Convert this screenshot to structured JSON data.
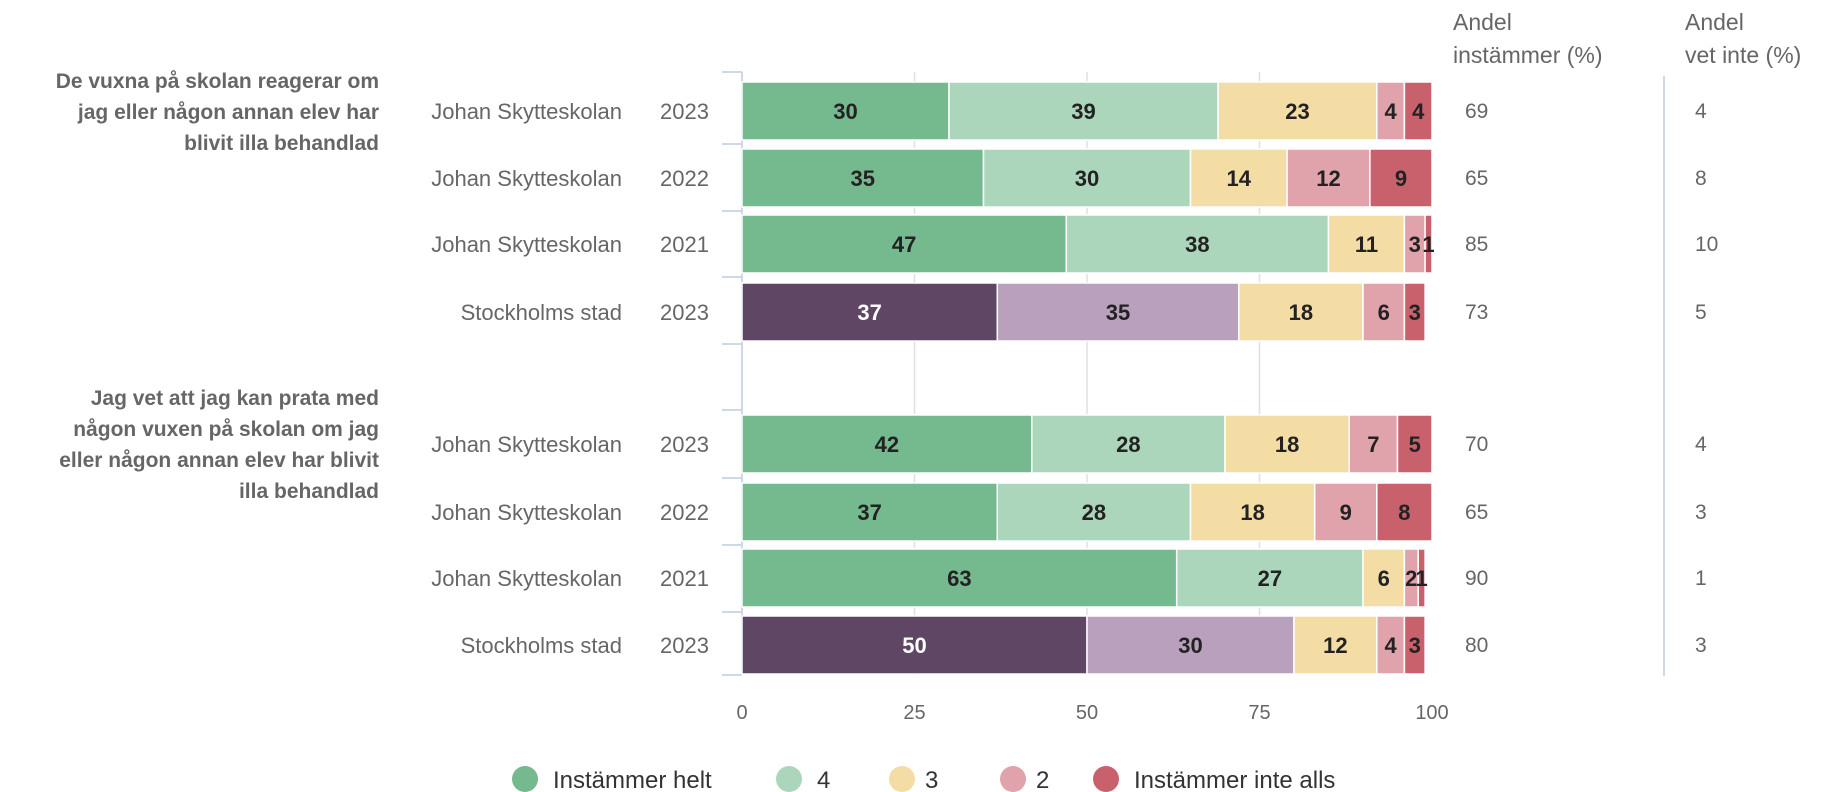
{
  "chart_data": {
    "type": "bar",
    "orientation": "horizontal-stacked",
    "xlim": [
      0,
      100
    ],
    "xticks": [
      "0",
      "25",
      "50",
      "75",
      "100"
    ],
    "legend_position": "bottom",
    "legend": [
      {
        "name": "Instämmer helt",
        "color": "#75b98e"
      },
      {
        "name": "4",
        "color": "#acd6bc"
      },
      {
        "name": "3",
        "color": "#f4dca5"
      },
      {
        "name": "2",
        "color": "#e0a2ab"
      },
      {
        "name": "Instämmer inte alls",
        "color": "#c9616d"
      }
    ],
    "stockholm_colors": [
      "#5e4664",
      "#b9a1bd",
      "#f4dca5",
      "#e0a2ab",
      "#c9616d"
    ],
    "col_headers": {
      "instammer": [
        "Andel",
        "instämmer (%)"
      ],
      "vet_inte": [
        "Andel",
        "vet inte (%)"
      ]
    },
    "groups": [
      {
        "question": [
          "De vuxna på skolan reagerar om",
          "jag eller någon annan elev har",
          "blivit illa behandlad"
        ],
        "rows": [
          {
            "label": "Johan Skytteskolan",
            "year": "2023",
            "values": [
              30,
              39,
              23,
              4,
              4
            ],
            "instammer": "69",
            "vet_inte": "4",
            "stockholm": false
          },
          {
            "label": "Johan Skytteskolan",
            "year": "2022",
            "values": [
              35,
              30,
              14,
              12,
              9
            ],
            "instammer": "65",
            "vet_inte": "8",
            "stockholm": false
          },
          {
            "label": "Johan Skytteskolan",
            "year": "2021",
            "values": [
              47,
              38,
              11,
              3,
              1
            ],
            "instammer": "85",
            "vet_inte": "10",
            "stockholm": false
          },
          {
            "label": "Stockholms stad",
            "year": "2023",
            "values": [
              37,
              35,
              18,
              6,
              3
            ],
            "instammer": "73",
            "vet_inte": "5",
            "stockholm": true
          }
        ]
      },
      {
        "question": [
          "Jag vet att jag kan prata med",
          "någon vuxen på skolan om jag",
          "eller någon annan elev har blivit",
          "illa behandlad"
        ],
        "rows": [
          {
            "label": "Johan Skytteskolan",
            "year": "2023",
            "values": [
              42,
              28,
              18,
              7,
              5
            ],
            "instammer": "70",
            "vet_inte": "4",
            "stockholm": false
          },
          {
            "label": "Johan Skytteskolan",
            "year": "2022",
            "values": [
              37,
              28,
              18,
              9,
              8
            ],
            "instammer": "65",
            "vet_inte": "3",
            "stockholm": false
          },
          {
            "label": "Johan Skytteskolan",
            "year": "2021",
            "values": [
              63,
              27,
              6,
              2,
              1
            ],
            "instammer": "90",
            "vet_inte": "1",
            "stockholm": false
          },
          {
            "label": "Stockholms stad",
            "year": "2023",
            "values": [
              50,
              30,
              12,
              4,
              3
            ],
            "instammer": "80",
            "vet_inte": "3",
            "stockholm": true
          }
        ]
      }
    ]
  }
}
